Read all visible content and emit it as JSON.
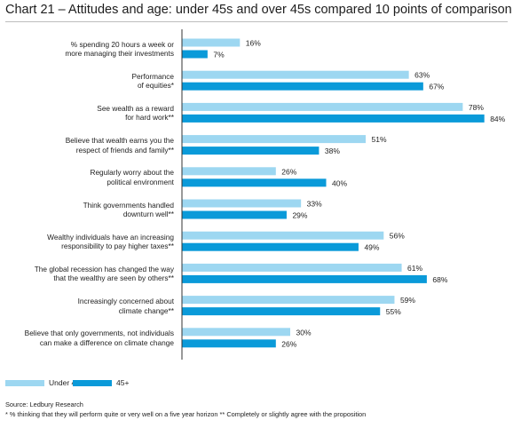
{
  "title": "Chart 21 – Attitudes and age: under 45s and over 45s compared 10 points of comparison",
  "chart_data": {
    "type": "bar",
    "orientation": "horizontal",
    "categories": [
      [
        "% spending 20 hours a week or",
        "more managing their investments"
      ],
      [
        "Performance",
        "of equities*"
      ],
      [
        "See wealth as a reward",
        "for hard work**"
      ],
      [
        "Believe that wealth earns you the",
        "respect of friends and family**"
      ],
      [
        "Regularly worry about the",
        "political environment"
      ],
      [
        "Think governments handled",
        "downturn well**"
      ],
      [
        "Wealthy individuals have an increasing",
        "responsibility to pay higher taxes**"
      ],
      [
        "The global recession has changed the way",
        "that the wealthy are seen by others**"
      ],
      [
        "Increasingly concerned about",
        "climate change**"
      ],
      [
        "Believe that only governments, not individuals",
        "can make a difference on climate change"
      ]
    ],
    "series": [
      {
        "name": "Under 45",
        "color": "#9dd7f1",
        "values": [
          16,
          63,
          78,
          51,
          26,
          33,
          56,
          61,
          59,
          30
        ]
      },
      {
        "name": "45+",
        "color": "#0a9ad9",
        "values": [
          7,
          67,
          84,
          38,
          40,
          29,
          49,
          68,
          55,
          26
        ]
      }
    ],
    "value_suffix": "%",
    "xlim": [
      0,
      100
    ],
    "grid": false,
    "legend_position": "bottom-left"
  },
  "source": "Source: Ledbury Research",
  "footnote": "* % thinking that they will perform quite or very well on a five year horizon  ** Completely or slightly agree with the proposition"
}
